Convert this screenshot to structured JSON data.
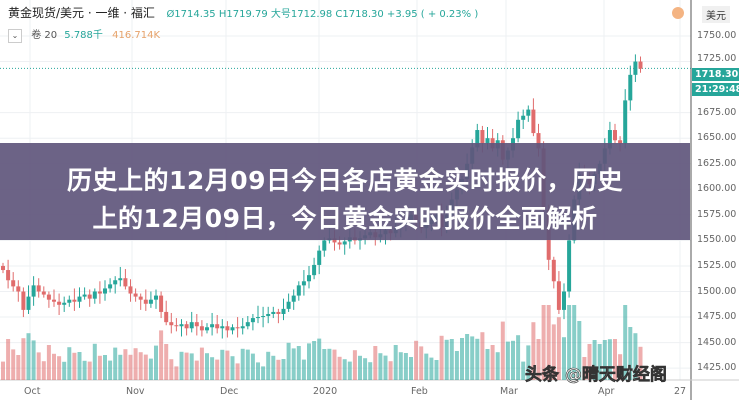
{
  "header": {
    "title": "黄金现货/美元 · 一维 · 福汇",
    "ohlc": "Ø1714.35  H1719.79  大号1712.98  C1718.30  +3.95 ( + 0.23% )",
    "volume_label": "卷 20",
    "volume_value1": "5.788千",
    "volume_value2": "416.714K",
    "currency": "美元"
  },
  "overlay": {
    "line1": "历史上的12月09日今日各店黄金实时报价，历史",
    "line2": "上的12月09日，今日黄金实时报价全面解析"
  },
  "watermark": "头条 @晴天财经阁",
  "current_price_label": "1718.30",
  "current_time_label": "21:29:48",
  "colors": {
    "up": "#26a69a",
    "down": "#e06c6c",
    "overlay": "#60567c"
  },
  "chart_data": {
    "type": "candlestick",
    "title": "黄金现货/美元",
    "ylim": [
      1415,
      1765
    ],
    "y_ticks": [
      "1750.00",
      "1725.00",
      "1675.00",
      "1650.00",
      "1625.00",
      "1600.00",
      "1575.00",
      "1550.00",
      "1525.00",
      "1500.00",
      "1475.00",
      "1450.00",
      "1425.00"
    ],
    "x_ticks": [
      "Oct",
      "Nov",
      "Dec",
      "2020",
      "Feb",
      "Mar",
      "Apr",
      "27"
    ],
    "grid": true,
    "current_price": 1718.3,
    "close": [
      1521,
      1511,
      1505,
      1500,
      1482,
      1495,
      1506,
      1500,
      1497,
      1492,
      1490,
      1487,
      1489,
      1492,
      1490,
      1495,
      1497,
      1493,
      1500,
      1498,
      1503,
      1507,
      1511,
      1513,
      1505,
      1498,
      1495,
      1492,
      1488,
      1492,
      1496,
      1480,
      1470,
      1467,
      1466,
      1468,
      1464,
      1470,
      1466,
      1462,
      1465,
      1468,
      1464,
      1466,
      1462,
      1465,
      1464,
      1466,
      1470,
      1474,
      1475,
      1476,
      1478,
      1480,
      1478,
      1483,
      1490,
      1496,
      1506,
      1510,
      1516,
      1526,
      1540,
      1550,
      1552,
      1548,
      1546,
      1549,
      1553,
      1550,
      1552,
      1555,
      1558,
      1553,
      1556,
      1560,
      1557,
      1562,
      1565,
      1570,
      1575,
      1568,
      1562,
      1566,
      1570,
      1575,
      1563,
      1575,
      1590,
      1600,
      1610,
      1625,
      1641,
      1658,
      1645,
      1650,
      1640,
      1648,
      1629,
      1638,
      1650,
      1668,
      1672,
      1678,
      1655,
      1640,
      1580,
      1531,
      1510,
      1482,
      1500,
      1550,
      1590,
      1615,
      1610,
      1605,
      1615,
      1625,
      1640,
      1658,
      1648,
      1645,
      1687,
      1712,
      1725,
      1718
    ]
  }
}
